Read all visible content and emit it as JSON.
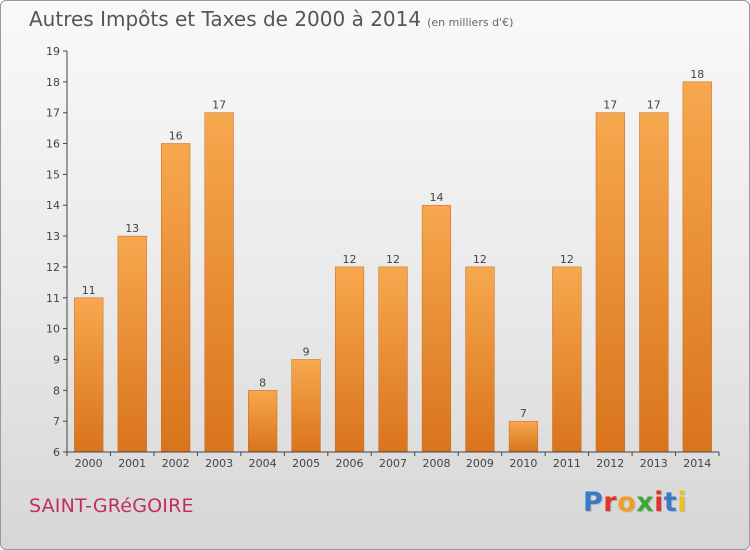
{
  "header": {
    "title": "Autres Impôts et Taxes de 2000 à 2014",
    "unit": "(en milliers d'€)"
  },
  "footer": {
    "commune": "SAINT-GRéGOIRE",
    "logo": {
      "letters": [
        "P",
        "r",
        "o",
        "x",
        "i",
        "t",
        "i"
      ],
      "colors": [
        "#3a78c8",
        "#e0342b",
        "#f0a020",
        "#3aa83a",
        "#e0342b",
        "#3a78c8",
        "#e8c020"
      ]
    }
  },
  "chart_data": {
    "type": "bar",
    "title": "Autres Impôts et Taxes de 2000 à 2014",
    "unit": "(en milliers d'€)",
    "categories": [
      "2000",
      "2001",
      "2002",
      "2003",
      "2004",
      "2005",
      "2006",
      "2007",
      "2008",
      "2009",
      "2010",
      "2011",
      "2012",
      "2013",
      "2014"
    ],
    "values": [
      11,
      13,
      16,
      17,
      8,
      9,
      12,
      12,
      14,
      12,
      7,
      12,
      17,
      17,
      18
    ],
    "ylim": [
      6,
      19
    ],
    "yticks": [
      "6",
      "7",
      "8",
      "9",
      "10",
      "11",
      "12",
      "13",
      "14",
      "15",
      "16",
      "17",
      "18",
      "19"
    ],
    "grid": false,
    "legend": "none",
    "colors": {
      "bar_light": "#f7a84e",
      "bar_dark": "#d9741c",
      "axis": "#444444",
      "text": "#444444"
    }
  }
}
